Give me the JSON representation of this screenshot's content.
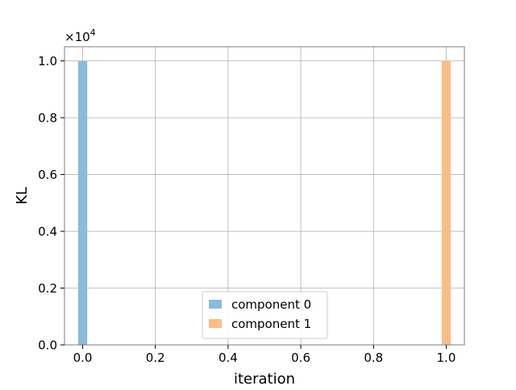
{
  "chart_data": {
    "type": "bar",
    "title": "",
    "xlabel": "iteration",
    "ylabel": "KL",
    "y_multiplier_label": "×10",
    "y_multiplier_exponent": "4",
    "xlim": [
      -0.05,
      1.05
    ],
    "ylim": [
      0,
      10500
    ],
    "x_ticks": [
      0.0,
      0.2,
      0.4,
      0.6,
      0.8,
      1.0
    ],
    "x_tick_labels": [
      "0.0",
      "0.2",
      "0.4",
      "0.6",
      "0.8",
      "1.0"
    ],
    "y_ticks": [
      0,
      2000,
      4000,
      6000,
      8000,
      10000
    ],
    "y_tick_labels": [
      "0.0",
      "0.2",
      "0.4",
      "0.6",
      "0.8",
      "1.0"
    ],
    "grid": true,
    "legend_position": "bottom-center",
    "bar_width": 0.025,
    "series": [
      {
        "name": "component 0",
        "color": "#8cbad8",
        "bars": [
          {
            "x": 0.0,
            "value": 10000
          }
        ]
      },
      {
        "name": "component 1",
        "color": "#fbbc88",
        "bars": [
          {
            "x": 1.0,
            "value": 10000
          }
        ]
      }
    ]
  }
}
